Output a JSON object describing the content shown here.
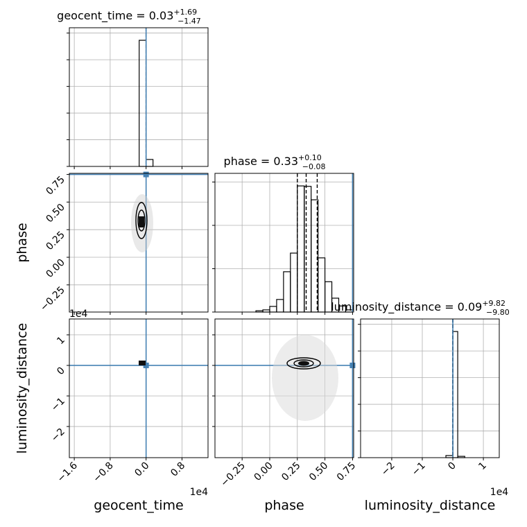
{
  "chart_data": {
    "type": "corner",
    "grid": true,
    "hist_color": "#000000",
    "truth_color": "#4682b4",
    "parameters": [
      {
        "name": "geocent_time",
        "title": "geocent_time = 0.03",
        "upper": "+1.69",
        "lower": "−1.47",
        "offset": "1e4",
        "lim": [
          -1.71,
          1.38
        ],
        "ticks": [
          {
            "value": -1.6,
            "label": "−1.6"
          },
          {
            "value": -0.8,
            "label": "−0.8"
          },
          {
            "value": 0,
            "label": "0.0"
          },
          0.8
        ],
        "truth": 0,
        "quantiles": [
          0,
          0,
          0
        ],
        "bins": [
          -0.154,
          0,
          0.154
        ],
        "counts": [
          473,
          26
        ],
        "hist_ylim": [
          0,
          520
        ],
        "hist_yticks": [
          0,
          100,
          200,
          300,
          400,
          500
        ]
      },
      {
        "name": "phase",
        "title": "phase = 0.33",
        "upper": "+0.10",
        "lower": "−0.08",
        "lim": [
          -0.496,
          0.76
        ],
        "ticks": [
          {
            "value": -0.25,
            "label": "−0.25"
          },
          {
            "value": 0,
            "label": "0.00"
          },
          0.25,
          {
            "value": 0.5,
            "label": "0.50"
          },
          0.75
        ],
        "truth": 0.75,
        "quantiles": [
          0.25,
          0.33,
          0.43
        ],
        "bins": [
          -0.125,
          -0.0625,
          0,
          0.0625,
          0.125,
          0.1875,
          0.25,
          0.3125,
          0.375,
          0.4375,
          0.5,
          0.5625,
          0.625,
          0.6875,
          0.75
        ],
        "counts": [
          3,
          5,
          13,
          29,
          93,
          136,
          291,
          290,
          259,
          125,
          70,
          32,
          14,
          5
        ],
        "hist_ylim": [
          0,
          320
        ],
        "hist_yticks": [
          0,
          100,
          200,
          300
        ]
      },
      {
        "name": "luminosity_distance",
        "title": "luminosity_distance = 0.09",
        "upper": "+9.82",
        "lower": "−9.80",
        "offset": "1e4",
        "lim": [
          -3.02,
          1.52
        ],
        "ticks": [
          {
            "value": -2,
            "label": "−2"
          },
          {
            "value": -1,
            "label": "−1"
          },
          0,
          1
        ],
        "truth": 0,
        "quantiles": [
          0,
          0,
          0
        ],
        "bins": [
          -0.227,
          0,
          0.16,
          0.39
        ],
        "counts": [
          8,
          473,
          5
        ],
        "hist_ylim": [
          0,
          520
        ],
        "hist_yticks": [
          0,
          100,
          200,
          300,
          400,
          500
        ]
      }
    ]
  }
}
